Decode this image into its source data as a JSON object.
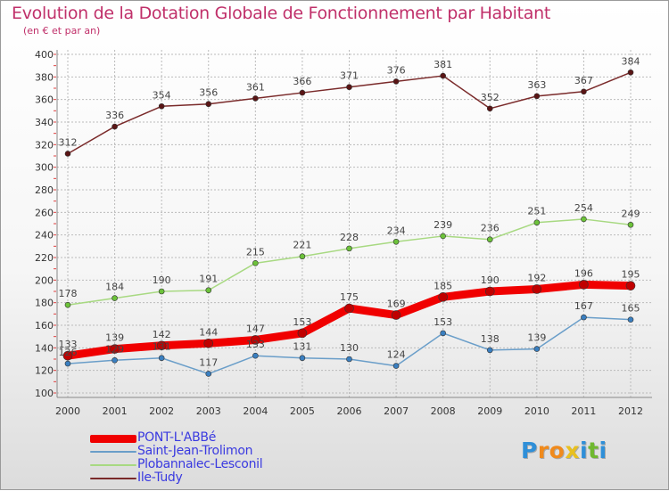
{
  "chart_data": {
    "type": "line",
    "title": "Evolution de la Dotation Globale de Fonctionnement par Habitant",
    "subtitle": "(en € et par an)",
    "categories": [
      "2000",
      "2001",
      "2002",
      "2003",
      "2004",
      "2005",
      "2006",
      "2007",
      "2008",
      "2009",
      "2010",
      "2011",
      "2012"
    ],
    "ylim": [
      100,
      400
    ],
    "yticks": [
      100,
      120,
      140,
      160,
      180,
      200,
      220,
      240,
      260,
      280,
      300,
      320,
      340,
      360,
      380,
      400
    ],
    "grid": true,
    "legend_position": "bottom-left",
    "series": [
      {
        "name": "Ile-Tudy",
        "color": "#7a2a2a",
        "marker": "#5a1515",
        "values": [
          312,
          336,
          354,
          356,
          361,
          366,
          371,
          376,
          381,
          352,
          363,
          367,
          384
        ]
      },
      {
        "name": "Plobannalec-Lesconil",
        "color": "#a8d982",
        "marker": "#6cc23a",
        "values": [
          178,
          184,
          190,
          191,
          215,
          221,
          228,
          234,
          239,
          236,
          251,
          254,
          249
        ]
      },
      {
        "name": "Saint-Jean-Trolimon",
        "color": "#6a9ec9",
        "marker": "#3a7fc0",
        "values": [
          126,
          129,
          131,
          117,
          133,
          131,
          130,
          124,
          153,
          138,
          139,
          167,
          165
        ]
      },
      {
        "name": "PONT-L'ABBé",
        "color": "#f00000",
        "marker": "#c00000",
        "values": [
          133,
          139,
          142,
          144,
          147,
          153,
          175,
          169,
          185,
          190,
          192,
          196,
          195
        ]
      }
    ],
    "data_labels": {
      "Ile-Tudy": [
        "312",
        "336",
        "354",
        "356",
        "361",
        "366",
        "371",
        "376",
        "381",
        "352",
        "363",
        "367",
        "384"
      ],
      "Plobannalec-Lesconil": [
        "178",
        "184",
        "190",
        "191",
        "215",
        "221",
        "228",
        "234",
        "239",
        "236",
        "251",
        "254",
        "249"
      ],
      "Saint-Jean-Trolimon": [
        "126",
        "129",
        "131",
        "117",
        "133",
        "131",
        "130",
        "124",
        "153",
        "138",
        "139",
        "167",
        "165"
      ],
      "PONT-L'ABBé": [
        "133",
        "139",
        "142",
        "144",
        "147",
        "153",
        "175",
        "169",
        "185",
        "190",
        "192",
        "196",
        "195"
      ]
    }
  },
  "legend": [
    {
      "label": "PONT-L'ABBé",
      "color": "#f00000"
    },
    {
      "label": "Saint-Jean-Trolimon",
      "color": "#6a9ec9"
    },
    {
      "label": "Plobannalec-Lesconil",
      "color": "#a8d982"
    },
    {
      "label": "Ile-Tudy",
      "color": "#7a2a2a"
    }
  ],
  "logo": {
    "text": "Proxiti",
    "letters": [
      "P",
      "r",
      "o",
      "x",
      "i",
      "t",
      "i"
    ],
    "colors": [
      "#2f8fd8",
      "#f08a1c",
      "#f08a1c",
      "#e8c020",
      "#2f8fd8",
      "#70b830",
      "#2f8fd8"
    ]
  }
}
